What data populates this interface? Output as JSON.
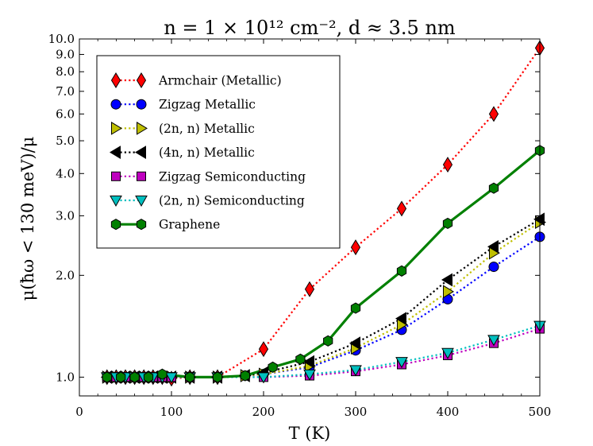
{
  "chart_data": {
    "type": "line",
    "title": "n = 1 × 10¹² cm⁻², d ≈ 3.5 nm",
    "xlabel": "T (K)",
    "ylabel": "μ(ħω < 130 meV)/μ",
    "xlim": [
      0,
      500
    ],
    "ylim": [
      0.88,
      10.0
    ],
    "yscale": "log",
    "xticks": [
      0,
      100,
      200,
      300,
      400,
      500
    ],
    "xtick_labels": [
      "0",
      "100",
      "200",
      "300",
      "400",
      "500"
    ],
    "yticks": [
      1.0,
      2.0,
      3.0,
      4.0,
      5.0,
      6.0,
      7.0,
      8.0,
      9.0,
      10.0
    ],
    "ytick_labels": [
      "1.0",
      "2.0",
      "3.0",
      "4.0",
      "5.0",
      "6.0",
      "7.0",
      "8.0",
      "9.0",
      "10.0"
    ],
    "legend_position": "top-left",
    "series": [
      {
        "name": "Armchair (Metallic)",
        "color": "#ff0000",
        "marker": "diamond",
        "linestyle": "dotted",
        "x": [
          30,
          40,
          50,
          60,
          70,
          80,
          90,
          100,
          120,
          150,
          200,
          250,
          300,
          350,
          400,
          450,
          500
        ],
        "y": [
          1.0,
          1.0,
          1.0,
          1.0,
          1.0,
          1.0,
          1.0,
          0.99,
          1.0,
          1.0,
          1.21,
          1.82,
          2.42,
          3.15,
          4.25,
          6.0,
          9.4
        ]
      },
      {
        "name": "Zigzag Metallic",
        "color": "#0000ff",
        "marker": "circle",
        "linestyle": "dotted",
        "x": [
          30,
          40,
          50,
          60,
          70,
          80,
          90,
          100,
          120,
          150,
          180,
          200,
          250,
          300,
          350,
          400,
          450,
          500
        ],
        "y": [
          1.0,
          1.0,
          1.0,
          1.0,
          1.0,
          1.0,
          1.0,
          1.0,
          1.0,
          1.0,
          1.01,
          1.02,
          1.07,
          1.2,
          1.38,
          1.7,
          2.12,
          2.6
        ]
      },
      {
        "name": "(2n, n) Metallic",
        "color": "#bfbf00",
        "marker": "triangle-right",
        "linestyle": "dotted",
        "x": [
          30,
          40,
          50,
          60,
          70,
          80,
          90,
          100,
          120,
          150,
          180,
          200,
          250,
          300,
          350,
          400,
          450,
          500
        ],
        "y": [
          1.0,
          1.0,
          1.0,
          1.0,
          1.0,
          1.0,
          1.0,
          1.0,
          1.0,
          1.0,
          1.01,
          1.02,
          1.08,
          1.22,
          1.43,
          1.79,
          2.33,
          2.87
        ]
      },
      {
        "name": "(4n, n) Metallic",
        "color": "#000000",
        "marker": "triangle-left",
        "linestyle": "dotted",
        "x": [
          30,
          40,
          50,
          60,
          70,
          80,
          90,
          100,
          120,
          150,
          180,
          200,
          250,
          300,
          350,
          400,
          450,
          500
        ],
        "y": [
          1.0,
          1.0,
          1.0,
          1.0,
          1.0,
          1.0,
          1.0,
          1.0,
          1.0,
          1.0,
          1.01,
          1.03,
          1.11,
          1.26,
          1.49,
          1.94,
          2.43,
          2.93
        ]
      },
      {
        "name": "Zigzag Semiconducting",
        "color": "#bf00bf",
        "marker": "square",
        "linestyle": "dotted",
        "x": [
          30,
          40,
          50,
          60,
          70,
          80,
          90,
          100,
          120,
          150,
          200,
          250,
          300,
          350,
          400,
          450,
          500
        ],
        "y": [
          1.0,
          1.0,
          1.0,
          1.0,
          1.0,
          1.0,
          1.0,
          1.0,
          1.0,
          1.0,
          1.0,
          1.01,
          1.04,
          1.09,
          1.16,
          1.26,
          1.39
        ]
      },
      {
        "name": "(2n, n) Semiconducting",
        "color": "#00bfbf",
        "marker": "triangle-down",
        "linestyle": "dotted",
        "x": [
          30,
          40,
          50,
          60,
          70,
          80,
          90,
          100,
          120,
          150,
          200,
          250,
          300,
          350,
          400,
          450,
          500
        ],
        "y": [
          1.0,
          1.0,
          1.0,
          1.0,
          1.0,
          1.0,
          1.0,
          1.0,
          1.0,
          1.0,
          1.0,
          1.02,
          1.05,
          1.11,
          1.18,
          1.29,
          1.42
        ]
      },
      {
        "name": "Graphene",
        "color": "#008000",
        "marker": "hexagon",
        "linestyle": "solid",
        "x": [
          30,
          45,
          60,
          75,
          90,
          120,
          150,
          180,
          210,
          240,
          270,
          300,
          350,
          400,
          450,
          500
        ],
        "y": [
          1.0,
          1.0,
          1.0,
          1.0,
          1.02,
          1.0,
          1.0,
          1.01,
          1.07,
          1.13,
          1.28,
          1.6,
          2.06,
          2.85,
          3.62,
          4.68
        ]
      }
    ]
  }
}
